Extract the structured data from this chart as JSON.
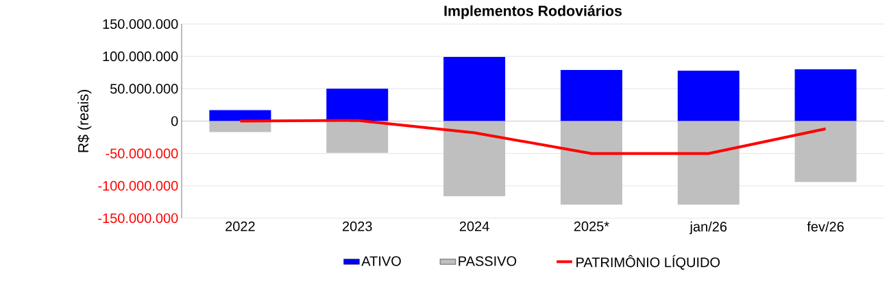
{
  "chart_data": {
    "type": "bar",
    "title": "Implementos Rodoviários",
    "ylabel": "R$ (reais)",
    "categories": [
      "2022",
      "2023",
      "2024",
      "2025*",
      "jan/26",
      "fev/26"
    ],
    "series": [
      {
        "name": "ATIVO",
        "color": "#0000ff",
        "values": [
          17000000,
          50000000,
          99000000,
          79000000,
          78000000,
          80000000
        ]
      },
      {
        "name": "PASSIVO",
        "color": "#bfbfbf",
        "values": [
          -17000000,
          -49000000,
          -116000000,
          -129000000,
          -129000000,
          -94000000
        ]
      },
      {
        "name": "PATRIMÔNIO LÍQUIDO",
        "type": "line",
        "color": "#ff0000",
        "values": [
          0,
          1000000,
          -18000000,
          -50000000,
          -50000000,
          -12000000
        ]
      }
    ],
    "ylim": [
      -150000000,
      150000000
    ],
    "yticks": [
      {
        "value": -150000000,
        "label": "-150.000.000"
      },
      {
        "value": -100000000,
        "label": "-100.000.000"
      },
      {
        "value": -50000000,
        "label": "-50.000.000"
      },
      {
        "value": 0,
        "label": "0"
      },
      {
        "value": 50000000,
        "label": "50.000.000"
      },
      {
        "value": 100000000,
        "label": "100.000.000"
      },
      {
        "value": 150000000,
        "label": "150.000.000"
      }
    ],
    "stacked": true,
    "grid": "y",
    "legend": "bottom",
    "marker": "none",
    "line_style": "solid"
  }
}
